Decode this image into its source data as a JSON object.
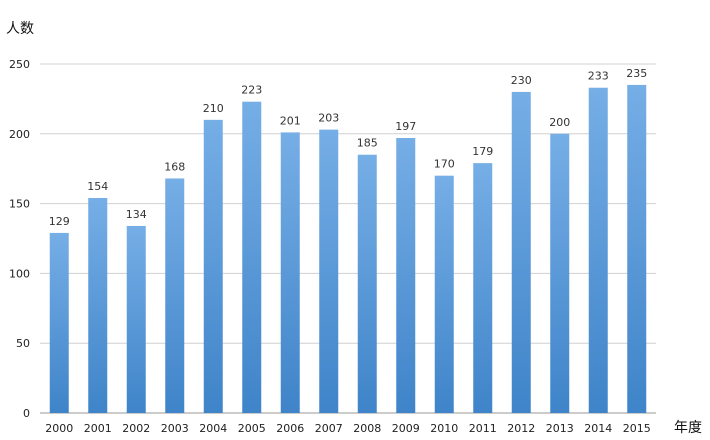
{
  "chart_data": {
    "type": "bar",
    "categories": [
      "2000",
      "2001",
      "2002",
      "2003",
      "2004",
      "2005",
      "2006",
      "2007",
      "2008",
      "2009",
      "2010",
      "2011",
      "2012",
      "2013",
      "2014",
      "2015"
    ],
    "values": [
      129,
      154,
      134,
      168,
      210,
      223,
      201,
      203,
      185,
      197,
      170,
      179,
      230,
      200,
      233,
      235
    ],
    "xlabel": "年度",
    "ylabel": "人数",
    "ylim": [
      0,
      250
    ],
    "yticks": [
      0,
      50,
      100,
      150,
      200,
      250
    ],
    "grid": true,
    "data_labels": true,
    "bar_color_top": "#76aee6",
    "bar_color_bottom": "#3f84c9"
  }
}
